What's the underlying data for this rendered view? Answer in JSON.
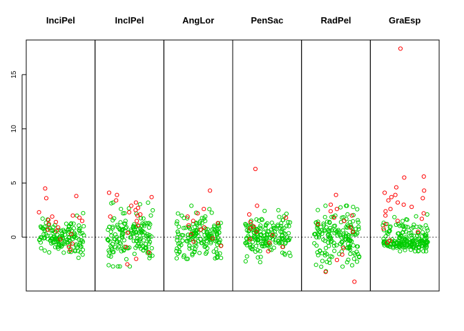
{
  "chart_data": {
    "type": "scatter",
    "panels": [
      "InciPel",
      "InclPel",
      "AngLor",
      "PenSac",
      "RadPel",
      "GraEsp"
    ],
    "y_ticks": [
      "0",
      "5",
      "10",
      "15"
    ],
    "ylim": [
      -5,
      18.5
    ],
    "reference_line": {
      "y": 0,
      "style": "dotted"
    },
    "grid": false,
    "colors": {
      "red": "#ff0000",
      "green": "#00cc00"
    },
    "groups": [
      {
        "name": "InciPel",
        "red": [
          4.5,
          3.8,
          3.6,
          2.3,
          2.0,
          1.9,
          1.8,
          1.6,
          1.5,
          1.4,
          1.2,
          0.9,
          0.7,
          0.6,
          0.3,
          -0.2,
          -0.6,
          -0.9,
          -1.2
        ],
        "green_range": [
          -1.9,
          2.4
        ],
        "green_count": 150
      },
      {
        "name": "InclPel",
        "red": [
          4.1,
          3.9,
          3.7,
          3.4,
          3.2,
          2.9,
          2.7,
          2.5,
          2.3,
          2.1,
          2.0,
          1.9,
          1.5,
          1.1,
          0.4,
          -0.9,
          -1.4,
          -2.0,
          -2.5
        ],
        "green_range": [
          -2.7,
          3.2
        ],
        "green_count": 160
      },
      {
        "name": "AngLor",
        "red": [
          4.3,
          2.6,
          2.2,
          1.9,
          1.5,
          1.3,
          1.1,
          0.9,
          0.7,
          0.3,
          -0.1,
          -0.4,
          -0.8
        ],
        "green_range": [
          -2.0,
          2.9
        ],
        "green_count": 170
      },
      {
        "name": "PenSac",
        "red": [
          6.3,
          2.9,
          2.1,
          1.8,
          1.4,
          1.0,
          0.8,
          0.5,
          0.2,
          -0.2,
          -0.5,
          -0.9,
          -1.3
        ],
        "green_range": [
          -2.3,
          2.9
        ],
        "green_count": 170
      },
      {
        "name": "RadPel",
        "red": [
          3.9,
          3.0,
          2.6,
          2.4,
          2.0,
          1.8,
          1.5,
          1.2,
          0.9,
          0.5,
          -1.0,
          -1.6,
          -2.1,
          -3.2,
          -4.1
        ],
        "green_range": [
          -3.7,
          2.9
        ],
        "green_count": 170
      },
      {
        "name": "GraEsp",
        "red": [
          17.4,
          5.6,
          5.5,
          4.6,
          4.3,
          4.1,
          3.9,
          3.7,
          3.6,
          3.4,
          3.2,
          3.0,
          2.8,
          2.6,
          2.4,
          2.2,
          2.0,
          1.7,
          1.5,
          1.2,
          0.8,
          0.5,
          -0.3,
          -0.5
        ],
        "green_range": [
          -1.3,
          3.0
        ],
        "green_count": 200,
        "green_band": [
          -1.0,
          -0.3
        ]
      }
    ]
  }
}
